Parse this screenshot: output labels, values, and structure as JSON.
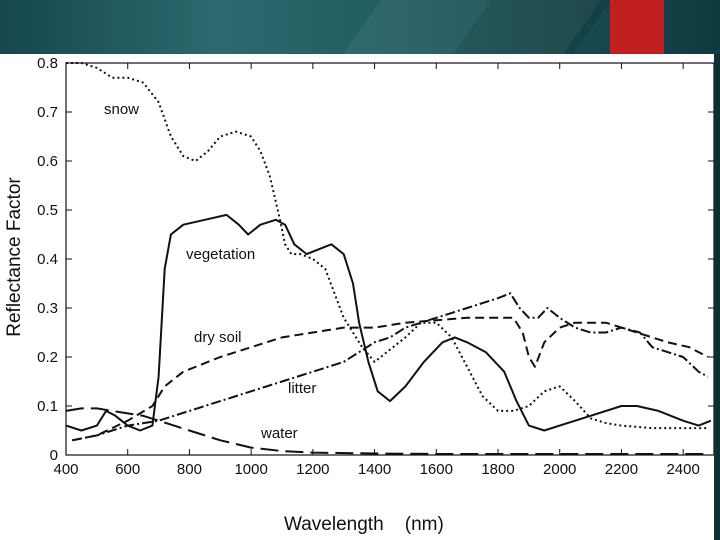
{
  "slide": {
    "header_color": "#1f5a5e",
    "accent_color": "#c0201f"
  },
  "chart_data": {
    "type": "line",
    "title": "",
    "xlabel": "Wavelength    (nm)",
    "ylabel": "Reflectance Factor",
    "xlim": [
      400,
      2500
    ],
    "ylim": [
      0,
      0.8
    ],
    "xticks": [
      400,
      600,
      800,
      1000,
      1200,
      1400,
      1600,
      1800,
      2000,
      2200,
      2400
    ],
    "yticks": [
      0,
      0.1,
      0.2,
      0.3,
      0.4,
      0.5,
      0.6,
      0.7,
      0.8
    ],
    "ytick_labels": [
      "0",
      "0.1",
      "0.2",
      "0.3",
      "0.4",
      "0.5",
      "0.6",
      "0.7",
      "0.8"
    ],
    "grid": false,
    "legend": "inline labels",
    "series": [
      {
        "name": "snow",
        "dash": "dotted",
        "points": [
          [
            400,
            0.8
          ],
          [
            450,
            0.8
          ],
          [
            500,
            0.79
          ],
          [
            550,
            0.77
          ],
          [
            600,
            0.77
          ],
          [
            650,
            0.76
          ],
          [
            700,
            0.72
          ],
          [
            740,
            0.65
          ],
          [
            780,
            0.61
          ],
          [
            820,
            0.6
          ],
          [
            860,
            0.62
          ],
          [
            900,
            0.65
          ],
          [
            950,
            0.66
          ],
          [
            1000,
            0.65
          ],
          [
            1030,
            0.62
          ],
          [
            1060,
            0.57
          ],
          [
            1090,
            0.49
          ],
          [
            1110,
            0.43
          ],
          [
            1130,
            0.41
          ],
          [
            1160,
            0.41
          ],
          [
            1200,
            0.4
          ],
          [
            1240,
            0.38
          ],
          [
            1270,
            0.33
          ],
          [
            1300,
            0.28
          ],
          [
            1330,
            0.25
          ],
          [
            1360,
            0.22
          ],
          [
            1400,
            0.19
          ],
          [
            1440,
            0.21
          ],
          [
            1500,
            0.24
          ],
          [
            1550,
            0.27
          ],
          [
            1600,
            0.27
          ],
          [
            1650,
            0.24
          ],
          [
            1700,
            0.18
          ],
          [
            1750,
            0.12
          ],
          [
            1800,
            0.09
          ],
          [
            1850,
            0.09
          ],
          [
            1900,
            0.1
          ],
          [
            1950,
            0.13
          ],
          [
            2000,
            0.14
          ],
          [
            2050,
            0.11
          ],
          [
            2100,
            0.075
          ],
          [
            2150,
            0.065
          ],
          [
            2200,
            0.06
          ],
          [
            2300,
            0.055
          ],
          [
            2400,
            0.055
          ],
          [
            2480,
            0.055
          ]
        ]
      },
      {
        "name": "vegetation",
        "dash": "solid",
        "points": [
          [
            400,
            0.06
          ],
          [
            450,
            0.05
          ],
          [
            500,
            0.06
          ],
          [
            530,
            0.09
          ],
          [
            560,
            0.08
          ],
          [
            600,
            0.06
          ],
          [
            640,
            0.05
          ],
          [
            680,
            0.06
          ],
          [
            700,
            0.16
          ],
          [
            720,
            0.38
          ],
          [
            740,
            0.45
          ],
          [
            780,
            0.47
          ],
          [
            850,
            0.48
          ],
          [
            920,
            0.49
          ],
          [
            960,
            0.47
          ],
          [
            990,
            0.45
          ],
          [
            1030,
            0.47
          ],
          [
            1080,
            0.48
          ],
          [
            1110,
            0.47
          ],
          [
            1140,
            0.43
          ],
          [
            1180,
            0.41
          ],
          [
            1220,
            0.42
          ],
          [
            1260,
            0.43
          ],
          [
            1300,
            0.41
          ],
          [
            1330,
            0.35
          ],
          [
            1350,
            0.27
          ],
          [
            1380,
            0.19
          ],
          [
            1410,
            0.13
          ],
          [
            1450,
            0.11
          ],
          [
            1500,
            0.14
          ],
          [
            1560,
            0.19
          ],
          [
            1620,
            0.23
          ],
          [
            1660,
            0.24
          ],
          [
            1700,
            0.23
          ],
          [
            1760,
            0.21
          ],
          [
            1820,
            0.17
          ],
          [
            1860,
            0.11
          ],
          [
            1900,
            0.06
          ],
          [
            1950,
            0.05
          ],
          [
            2000,
            0.06
          ],
          [
            2100,
            0.08
          ],
          [
            2200,
            0.1
          ],
          [
            2250,
            0.1
          ],
          [
            2320,
            0.09
          ],
          [
            2400,
            0.07
          ],
          [
            2450,
            0.06
          ],
          [
            2490,
            0.07
          ]
        ]
      },
      {
        "name": "dry soil",
        "dash": "dashed",
        "points": [
          [
            420,
            0.03
          ],
          [
            500,
            0.04
          ],
          [
            600,
            0.07
          ],
          [
            680,
            0.1
          ],
          [
            720,
            0.14
          ],
          [
            780,
            0.17
          ],
          [
            900,
            0.2
          ],
          [
            1000,
            0.22
          ],
          [
            1100,
            0.24
          ],
          [
            1200,
            0.25
          ],
          [
            1300,
            0.26
          ],
          [
            1400,
            0.26
          ],
          [
            1500,
            0.27
          ],
          [
            1600,
            0.275
          ],
          [
            1700,
            0.28
          ],
          [
            1800,
            0.28
          ],
          [
            1850,
            0.28
          ],
          [
            1880,
            0.25
          ],
          [
            1900,
            0.2
          ],
          [
            1920,
            0.18
          ],
          [
            1950,
            0.23
          ],
          [
            2000,
            0.26
          ],
          [
            2050,
            0.27
          ],
          [
            2150,
            0.27
          ],
          [
            2200,
            0.26
          ],
          [
            2250,
            0.25
          ],
          [
            2350,
            0.23
          ],
          [
            2420,
            0.22
          ],
          [
            2480,
            0.2
          ]
        ]
      },
      {
        "name": "litter",
        "dash": "dash-dot",
        "points": [
          [
            420,
            0.03
          ],
          [
            500,
            0.04
          ],
          [
            600,
            0.06
          ],
          [
            700,
            0.07
          ],
          [
            800,
            0.09
          ],
          [
            900,
            0.11
          ],
          [
            1000,
            0.13
          ],
          [
            1100,
            0.15
          ],
          [
            1200,
            0.17
          ],
          [
            1300,
            0.19
          ],
          [
            1350,
            0.21
          ],
          [
            1400,
            0.23
          ],
          [
            1450,
            0.24
          ],
          [
            1500,
            0.26
          ],
          [
            1550,
            0.27
          ],
          [
            1600,
            0.28
          ],
          [
            1650,
            0.29
          ],
          [
            1700,
            0.3
          ],
          [
            1750,
            0.31
          ],
          [
            1800,
            0.32
          ],
          [
            1840,
            0.33
          ],
          [
            1870,
            0.3
          ],
          [
            1900,
            0.28
          ],
          [
            1930,
            0.28
          ],
          [
            1960,
            0.3
          ],
          [
            2000,
            0.28
          ],
          [
            2050,
            0.26
          ],
          [
            2100,
            0.25
          ],
          [
            2150,
            0.25
          ],
          [
            2200,
            0.26
          ],
          [
            2260,
            0.25
          ],
          [
            2300,
            0.22
          ],
          [
            2350,
            0.21
          ],
          [
            2400,
            0.2
          ],
          [
            2450,
            0.17
          ],
          [
            2480,
            0.16
          ]
        ]
      },
      {
        "name": "water",
        "dash": "long-dash",
        "points": [
          [
            400,
            0.09
          ],
          [
            450,
            0.095
          ],
          [
            500,
            0.095
          ],
          [
            550,
            0.09
          ],
          [
            600,
            0.085
          ],
          [
            650,
            0.08
          ],
          [
            700,
            0.07
          ],
          [
            750,
            0.06
          ],
          [
            800,
            0.05
          ],
          [
            900,
            0.03
          ],
          [
            1000,
            0.015
          ],
          [
            1100,
            0.008
          ],
          [
            1200,
            0.005
          ],
          [
            1400,
            0.003
          ],
          [
            1600,
            0.002
          ],
          [
            1800,
            0.002
          ],
          [
            2000,
            0.002
          ],
          [
            2200,
            0.002
          ],
          [
            2480,
            0.002
          ]
        ]
      }
    ],
    "series_label_text": {
      "snow": "snow",
      "vegetation": "vegetation",
      "dry_soil": "dry soil",
      "litter": "litter",
      "water": "water"
    }
  }
}
